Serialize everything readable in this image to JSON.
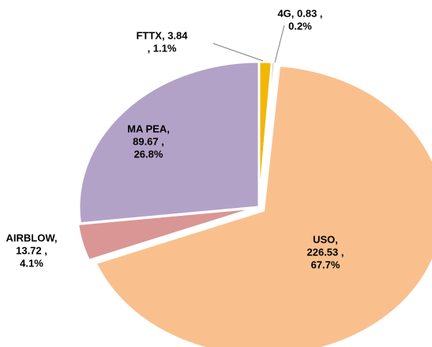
{
  "chart_data": {
    "type": "pie",
    "values": [
      3.84,
      0.83,
      226.53,
      13.72,
      89.67
    ],
    "value_labels": [
      [
        "FTTX,  3.84",
        ", 1.1%"
      ],
      [
        "4G,  0.83 ,",
        "0.2%"
      ],
      [
        "USO,",
        "226.53 ,",
        "67.7%"
      ],
      [
        "AIRBLOW,",
        "13.72 ,",
        "4.1%"
      ],
      [
        "MA PEA,",
        "89.67 ,",
        "26.8%"
      ]
    ],
    "colors": [
      "#f2b705",
      "#7f7f7f",
      "#f9c08e",
      "#d99694",
      "#b3a2c7"
    ]
  }
}
